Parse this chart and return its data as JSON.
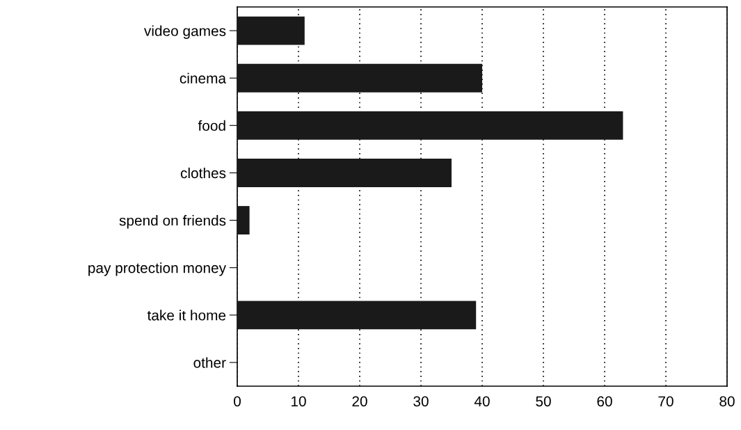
{
  "chart_data": {
    "type": "bar",
    "orientation": "horizontal",
    "categories": [
      "video games",
      "cinema",
      "food",
      "clothes",
      "spend on friends",
      "pay protection money",
      "take it home",
      "other"
    ],
    "values": [
      11,
      40,
      63,
      35,
      2,
      0,
      39,
      0
    ],
    "color": "#1a1a1a",
    "xlim": [
      0,
      80
    ],
    "xticks": [
      0,
      10,
      20,
      30,
      40,
      50,
      60,
      70,
      80
    ],
    "grid": "x"
  }
}
